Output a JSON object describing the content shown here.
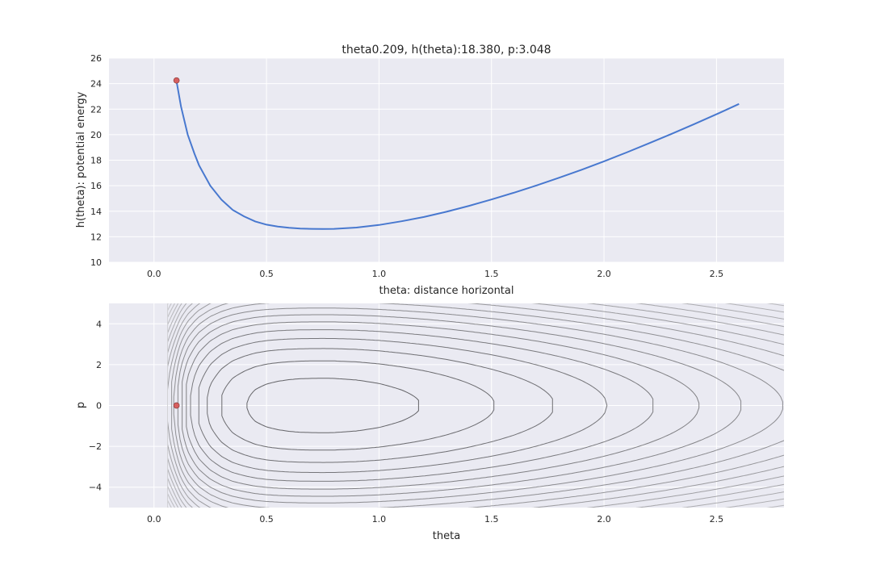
{
  "chart_data": [
    {
      "type": "line",
      "title": "theta0.209, h(theta):18.380, p:3.048",
      "xlabel": "theta: distance horizontal",
      "ylabel": "h(theta): potential energy",
      "xlim": [
        -0.2,
        2.8
      ],
      "ylim": [
        10,
        26
      ],
      "x_ticks": [
        0.0,
        0.5,
        1.0,
        1.5,
        2.0,
        2.5
      ],
      "x_tick_labels": [
        "0.0",
        "0.5",
        "1.0",
        "1.5",
        "2.0",
        "2.5"
      ],
      "y_ticks": [
        10,
        12,
        14,
        16,
        18,
        20,
        22,
        24,
        26
      ],
      "y_tick_labels": [
        "10",
        "12",
        "14",
        "16",
        "18",
        "20",
        "22",
        "24",
        "26"
      ],
      "grid": true,
      "legend": "none",
      "series": [
        {
          "color": "#4878cf",
          "x": [
            0.1,
            0.12,
            0.15,
            0.18,
            0.2,
            0.25,
            0.3,
            0.35,
            0.4,
            0.45,
            0.5,
            0.55,
            0.6,
            0.65,
            0.7,
            0.75,
            0.8,
            0.9,
            1.0,
            1.1,
            1.2,
            1.3,
            1.4,
            1.5,
            1.6,
            1.7,
            1.8,
            1.9,
            2.0,
            2.1,
            2.2,
            2.3,
            2.4,
            2.5,
            2.6
          ],
          "y": [
            24.2,
            22.2,
            20.0,
            18.5,
            17.6,
            16.0,
            14.9,
            14.1,
            13.6,
            13.2,
            12.95,
            12.8,
            12.7,
            12.64,
            12.62,
            12.61,
            12.62,
            12.72,
            12.92,
            13.21,
            13.55,
            13.96,
            14.42,
            14.92,
            15.45,
            16.02,
            16.62,
            17.25,
            17.91,
            18.6,
            19.32,
            20.06,
            20.82,
            21.6,
            22.41
          ]
        }
      ],
      "marker": {
        "x": 0.1,
        "y": 24.25,
        "color": "#d65f5f"
      }
    },
    {
      "type": "contour",
      "title": "",
      "xlabel": "theta",
      "ylabel": "p",
      "xlim": [
        -0.2,
        2.8
      ],
      "ylim": [
        -5,
        5
      ],
      "x_ticks": [
        0.0,
        0.5,
        1.0,
        1.5,
        2.0,
        2.5
      ],
      "x_tick_labels": [
        "0.0",
        "0.5",
        "1.0",
        "1.5",
        "2.0",
        "2.5"
      ],
      "y_ticks": [
        -4,
        -2,
        0,
        2,
        4
      ],
      "y_tick_labels": [
        "−4",
        "−2",
        "0",
        "2",
        "4"
      ],
      "grid": true,
      "legend": "none",
      "levels": [
        13.5,
        15,
        16.5,
        18,
        19.5,
        21,
        22.5,
        24,
        25.5,
        27,
        28.5,
        30,
        31.5,
        33,
        34.5,
        36,
        37.5,
        39,
        40.5,
        42,
        43.5
      ],
      "marker": {
        "x": 0.1,
        "y": 0.0,
        "color": "#d65f5f"
      }
    }
  ]
}
